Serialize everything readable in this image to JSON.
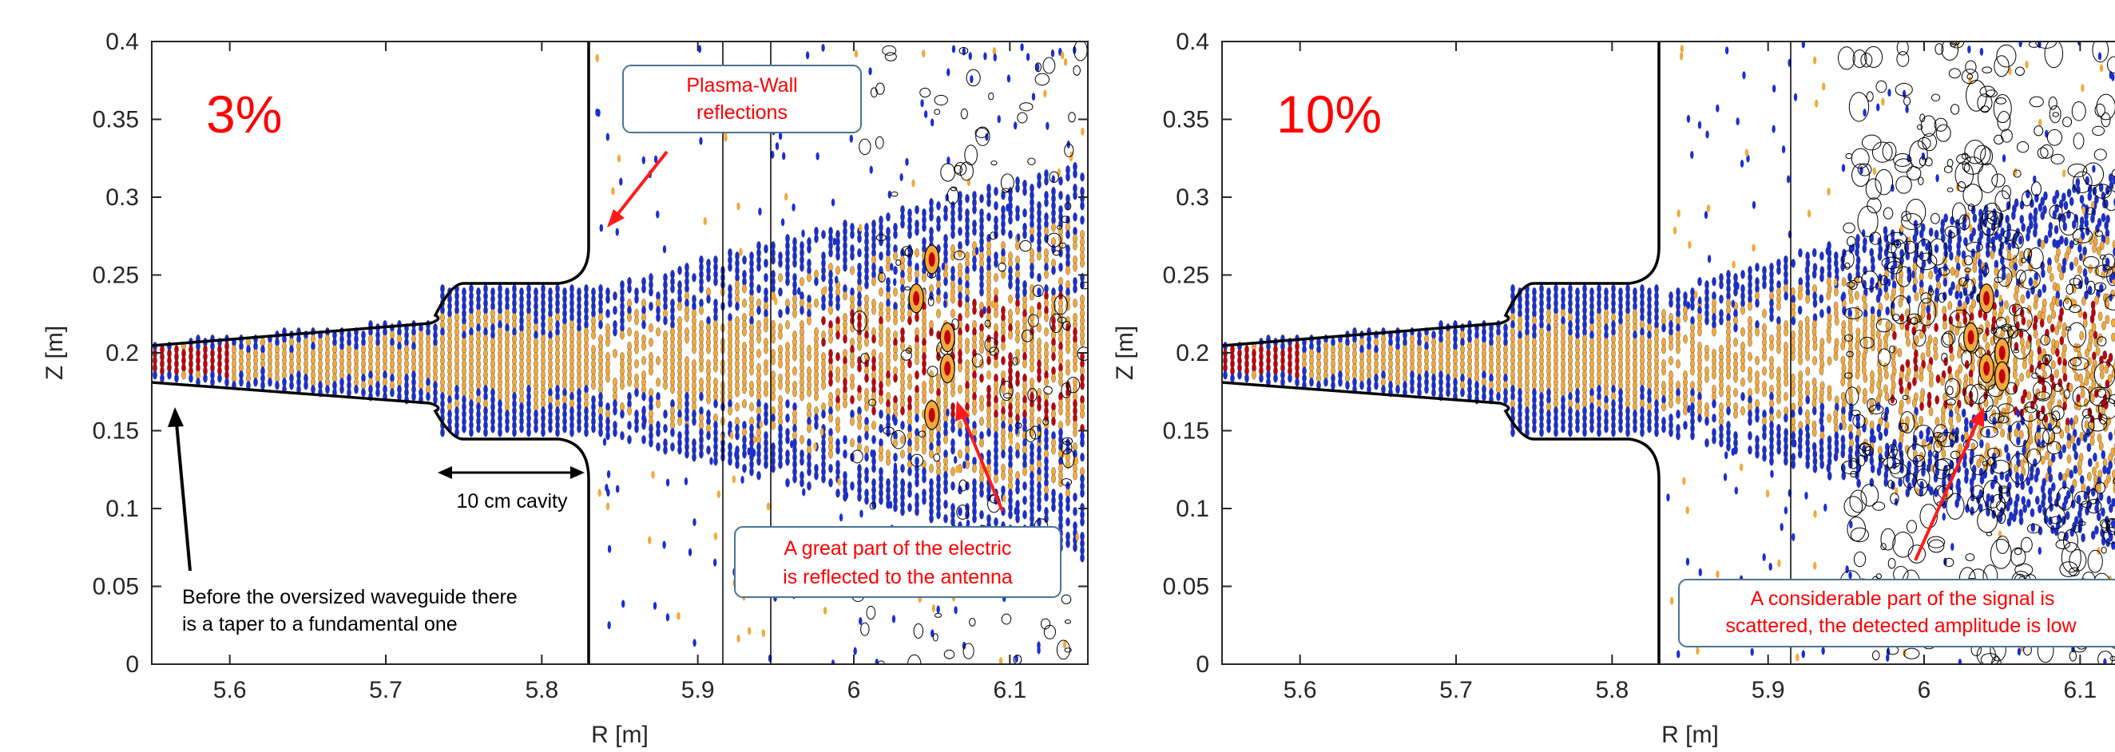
{
  "chart_data": [
    {
      "type": "contour",
      "panel_label": "3%",
      "xlabel": "R [m]",
      "ylabel": "Z [m]",
      "xlim": [
        5.55,
        6.15
      ],
      "ylim": [
        0,
        0.4
      ],
      "xticks": [
        "5.6",
        "5.7",
        "5.8",
        "5.9",
        "6",
        "6.1"
      ],
      "yticks": [
        "0",
        "0.05",
        "0.1",
        "0.15",
        "0.2",
        "0.25",
        "0.3",
        "0.35",
        "0.4"
      ],
      "annotations": [
        {
          "lines": [
            "Plasma-Wall",
            "reflections"
          ],
          "color": "#ff0000",
          "boxed": true
        },
        {
          "lines": [
            "10 cm cavity"
          ],
          "color": "#000000",
          "boxed": false
        },
        {
          "lines": [
            "Before the oversized waveguide there",
            "is a taper to a fundamental one"
          ],
          "color": "#000000",
          "boxed": false
        },
        {
          "lines": [
            "A great part of the electric",
            "is reflected to the antenna"
          ],
          "color": "#ff0000",
          "boxed": true
        }
      ],
      "colors": {
        "high": "#c0000a",
        "mid": "#f2a93b",
        "low": "#1a2fd0",
        "contour": "#000000"
      }
    },
    {
      "type": "contour",
      "panel_label": "10%",
      "xlabel": "R [m]",
      "ylabel": "Z [m]",
      "xlim": [
        5.55,
        6.15
      ],
      "ylim": [
        0,
        0.4
      ],
      "xticks": [
        "5.6",
        "5.7",
        "5.8",
        "5.9",
        "6",
        "6.1"
      ],
      "yticks": [
        "0",
        "0.05",
        "0.1",
        "0.15",
        "0.2",
        "0.25",
        "0.3",
        "0.35",
        "0.4"
      ],
      "annotations": [
        {
          "lines": [
            "A considerable part of the signal is",
            "scattered, the detected amplitude is low"
          ],
          "color": "#ff0000",
          "boxed": true
        }
      ],
      "colors": {
        "high": "#c0000a",
        "mid": "#f2a93b",
        "low": "#1a2fd0",
        "contour": "#000000"
      }
    }
  ]
}
